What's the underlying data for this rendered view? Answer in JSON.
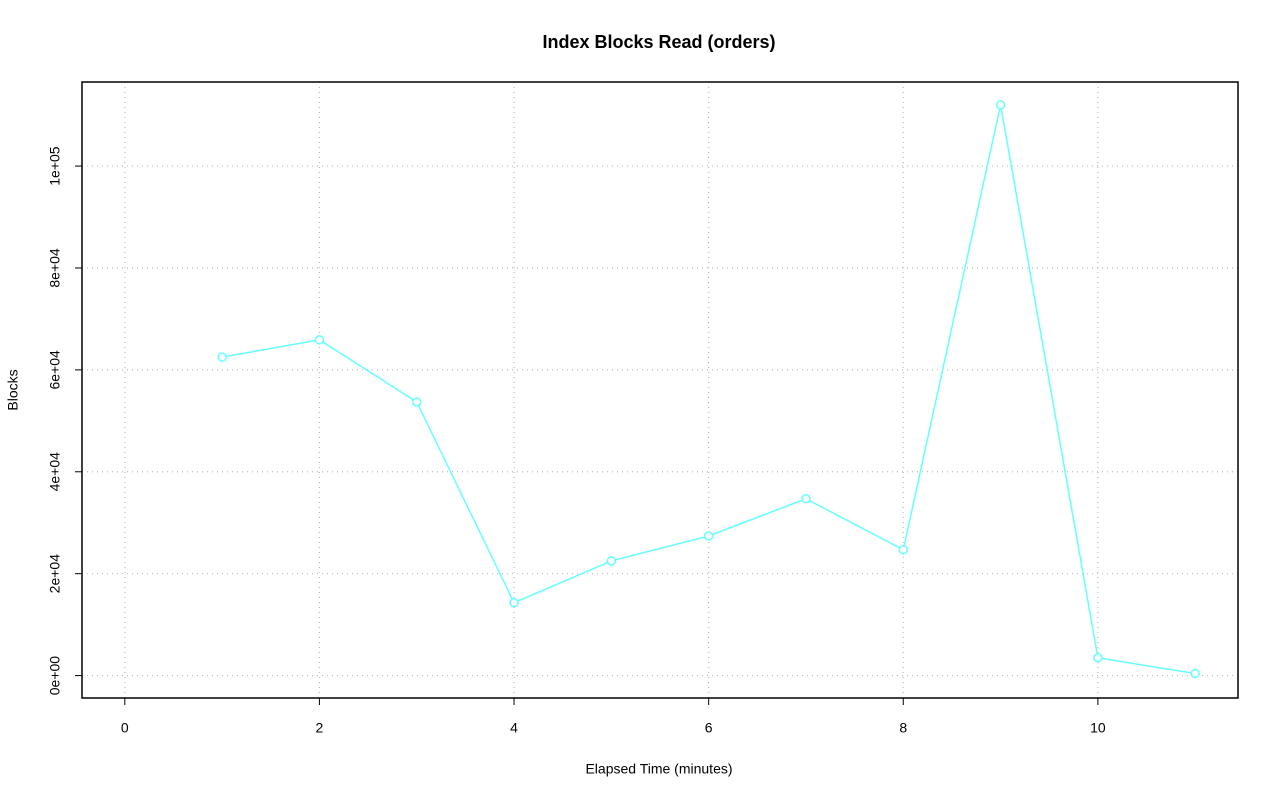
{
  "chart_data": {
    "type": "line",
    "title": "Index Blocks Read (orders)",
    "x_label": "Elapsed Time (minutes)",
    "y_label": "Blocks",
    "x": [
      1,
      2,
      3,
      4,
      5,
      6,
      7,
      8,
      9,
      10,
      11
    ],
    "series": [
      {
        "color": "#66ffff",
        "values": [
          62500,
          65900,
          53700,
          14300,
          22500,
          27400,
          34700,
          24700,
          112000,
          3500,
          400
        ]
      }
    ],
    "xlim": [
      -0.44,
      11.44
    ],
    "xticks": [
      0,
      2,
      4,
      6,
      8,
      10
    ],
    "ylim": [
      -4400,
      116500
    ],
    "yticks": [
      {
        "value": 0,
        "label": "0e+00"
      },
      {
        "value": 20000,
        "label": "2e+04"
      },
      {
        "value": 40000,
        "label": "4e+04"
      },
      {
        "value": 60000,
        "label": "6e+04"
      },
      {
        "value": 80000,
        "label": "8e+04"
      },
      {
        "value": 100000,
        "label": "1e+05"
      }
    ],
    "grid": true
  }
}
